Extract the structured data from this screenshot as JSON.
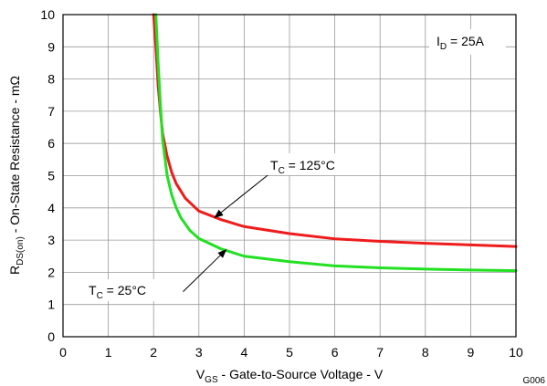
{
  "chart_data": {
    "type": "line",
    "title": "",
    "figure_id": "G006",
    "xlabel": {
      "main": "V",
      "sub": "GS",
      "rest": " - Gate-to-Source Voltage - V"
    },
    "ylabel": {
      "main": "R",
      "sub": "DS(on)",
      "rest": " - On-State Resistance - mΩ"
    },
    "xlim": [
      0,
      10
    ],
    "ylim": [
      0,
      10
    ],
    "xticks": [
      "0",
      "1",
      "2",
      "3",
      "4",
      "5",
      "6",
      "7",
      "8",
      "9",
      "10"
    ],
    "yticks": [
      "0",
      "1",
      "2",
      "3",
      "4",
      "5",
      "6",
      "7",
      "8",
      "9",
      "10"
    ],
    "grid": true,
    "condition": {
      "main": "I",
      "sub": "D",
      "rest": " = 25A"
    },
    "series": [
      {
        "name": "TC = 125°C",
        "label": {
          "main": "T",
          "sub": "C",
          "rest": " = 125°C"
        },
        "color": "#ee1c1c",
        "x": [
          2.0,
          2.05,
          2.1,
          2.15,
          2.2,
          2.3,
          2.4,
          2.5,
          2.7,
          3.0,
          3.5,
          4.0,
          5.0,
          6.0,
          7.0,
          8.0,
          9.0,
          10.0
        ],
        "y": [
          10.0,
          9.0,
          7.8,
          7.0,
          6.3,
          5.6,
          5.1,
          4.75,
          4.3,
          3.9,
          3.63,
          3.42,
          3.2,
          3.04,
          2.96,
          2.9,
          2.85,
          2.8
        ]
      },
      {
        "name": "TC = 25°C",
        "label": {
          "main": "T",
          "sub": "C",
          "rest": " = 25°C"
        },
        "color": "#22e022",
        "x": [
          2.05,
          2.1,
          2.15,
          2.2,
          2.3,
          2.4,
          2.5,
          2.6,
          2.8,
          3.0,
          3.5,
          4.0,
          5.0,
          6.0,
          7.0,
          8.0,
          9.0,
          10.0
        ],
        "y": [
          10.0,
          8.5,
          7.2,
          6.1,
          5.0,
          4.4,
          4.0,
          3.7,
          3.3,
          3.05,
          2.72,
          2.5,
          2.33,
          2.2,
          2.14,
          2.1,
          2.07,
          2.05
        ]
      }
    ],
    "annotations": [
      {
        "series": 0,
        "text_anchor": [
          4.55,
          5.05
        ],
        "arrow_to": [
          3.35,
          3.7
        ]
      },
      {
        "series": 1,
        "text_anchor": [
          2.65,
          1.4
        ],
        "arrow_to": [
          3.6,
          2.7
        ]
      }
    ]
  }
}
